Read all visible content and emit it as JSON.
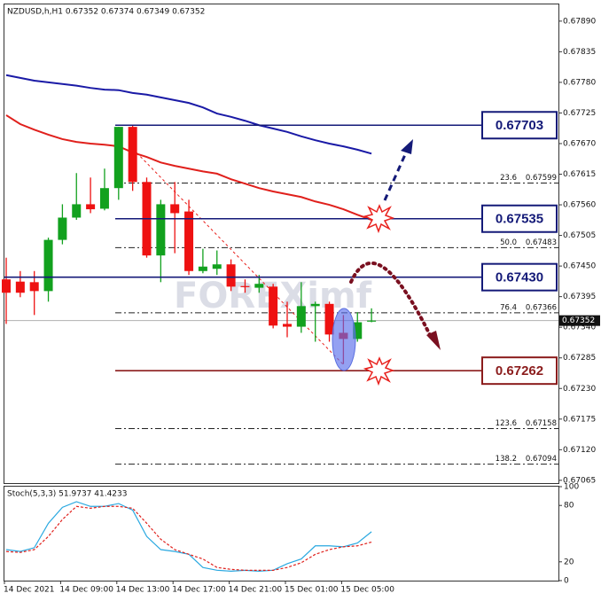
{
  "chart_data": [
    {
      "type": "candlestick",
      "title": "NZDUSD,h,H1  0.67352 0.67374 0.67349 0.67352",
      "watermark": "FOREXimf",
      "open": [
        0.67426,
        0.67422,
        0.67421,
        0.67405,
        0.67497,
        0.67537,
        0.67561,
        0.67553,
        0.6759,
        0.677,
        0.67601,
        0.67469,
        0.67561,
        0.67548,
        0.67441,
        0.67445,
        0.67453,
        0.67414,
        0.67411,
        0.67413,
        0.67346,
        0.67341,
        0.67378,
        0.67382,
        0.6733,
        0.67319,
        0.67352
      ],
      "high": [
        0.67465,
        0.67441,
        0.67441,
        0.67501,
        0.67561,
        0.67617,
        0.67609,
        0.67625,
        0.677,
        0.67703,
        0.67609,
        0.67569,
        0.67601,
        0.67569,
        0.67481,
        0.67478,
        0.67462,
        0.67426,
        0.67434,
        0.67418,
        0.67386,
        0.67421,
        0.67386,
        0.67386,
        0.67362,
        0.67367,
        0.67374
      ],
      "low": [
        0.67346,
        0.67394,
        0.67362,
        0.67386,
        0.67489,
        0.67533,
        0.67545,
        0.6755,
        0.67569,
        0.67585,
        0.67465,
        0.67421,
        0.67473,
        0.67434,
        0.67437,
        0.67434,
        0.67405,
        0.67402,
        0.67402,
        0.67338,
        0.67322,
        0.6733,
        0.67314,
        0.67314,
        0.67274,
        0.67314,
        0.67349
      ],
      "close": [
        0.67402,
        0.67402,
        0.67405,
        0.67497,
        0.67537,
        0.67561,
        0.67552,
        0.6759,
        0.677,
        0.67601,
        0.67469,
        0.67561,
        0.67545,
        0.67441,
        0.67449,
        0.67453,
        0.67413,
        0.67413,
        0.67418,
        0.67343,
        0.67341,
        0.67378,
        0.67382,
        0.67327,
        0.67319,
        0.67349,
        0.67352
      ],
      "up_color": "#12a11e",
      "down_color": "#ee1111",
      "series": [
        {
          "color": "#1a1aa6",
          "values": [
            0.67793,
            0.67788,
            0.67783,
            0.6778,
            0.67777,
            0.67774,
            0.6777,
            0.67767,
            0.67766,
            0.67761,
            0.67758,
            0.67753,
            0.67748,
            0.67743,
            0.67735,
            0.67724,
            0.67718,
            0.67711,
            0.67703,
            0.67697,
            0.67691,
            0.67683,
            0.67676,
            0.6767,
            0.67665,
            0.67659,
            0.67652
          ]
        },
        {
          "color": "#e0201c",
          "values": [
            0.67721,
            0.67705,
            0.67695,
            0.67686,
            0.67678,
            0.67673,
            0.6767,
            0.67668,
            0.67665,
            0.67654,
            0.67646,
            0.67636,
            0.6763,
            0.67625,
            0.6762,
            0.67616,
            0.67606,
            0.67598,
            0.6759,
            0.67584,
            0.67579,
            0.67574,
            0.67566,
            0.6756,
            0.67552,
            0.67542,
            0.67533
          ]
        }
      ],
      "levels": [
        {
          "value": 0.67703,
          "color": "#141a78"
        },
        {
          "value": 0.67535,
          "color": "#141a78"
        },
        {
          "value": 0.6743,
          "label": "0.67430",
          "color": "#141a78"
        },
        {
          "value": 0.67262,
          "color": "#8b1c1c"
        }
      ],
      "fib": [
        {
          "label": "23.6",
          "value": 0.67599
        },
        {
          "label": "50.0",
          "value": 0.67483
        },
        {
          "label": "76.4",
          "value": 0.67366
        },
        {
          "label": "123.6",
          "value": 0.67158
        },
        {
          "label": "138.2",
          "value": 0.67094
        }
      ],
      "ylim": [
        0.6706,
        0.6792
      ],
      "yticks": [
        {
          "value": 0.6789,
          "label": "0.67890"
        },
        {
          "value": 0.67835,
          "label": "0.67835"
        },
        {
          "value": 0.6778,
          "label": "0.67780"
        },
        {
          "value": 0.67725,
          "label": "0.67725"
        },
        {
          "value": 0.6767,
          "label": "0.67670"
        },
        {
          "value": 0.67615,
          "label": "0.67615"
        },
        {
          "value": 0.6756,
          "label": "0.67560"
        },
        {
          "value": 0.67505,
          "label": "0.67505"
        },
        {
          "value": 0.6745,
          "label": "0.67450"
        },
        {
          "value": 0.67395,
          "label": "0.67395"
        },
        {
          "value": 0.6734,
          "label": "0.67340"
        },
        {
          "value": 0.67285,
          "label": "0.67285"
        },
        {
          "value": 0.6723,
          "label": "0.67230"
        },
        {
          "value": 0.67175,
          "label": "0.67175"
        },
        {
          "value": 0.6712,
          "label": "0.67120"
        },
        {
          "value": 0.67065,
          "label": "0.67065"
        }
      ]
    },
    {
      "type": "line",
      "title": "Stoch(5,3,3) 51.9737 41.4233",
      "categories": [
        "14 Dec 2021",
        null,
        null,
        null,
        "14 Dec 09:00",
        null,
        null,
        null,
        "14 Dec 13:00",
        null,
        null,
        null,
        "14 Dec 17:00",
        null,
        null,
        null,
        "14 Dec 21:00",
        null,
        null,
        null,
        "15 Dec 01:00",
        null,
        null,
        null,
        "15 Dec 05:00",
        null,
        null
      ],
      "series": [
        {
          "color": "#29a8e0",
          "style": "solid",
          "values": [
            33,
            31,
            35,
            61,
            78,
            84,
            79,
            79,
            82,
            75,
            47,
            33,
            31,
            28,
            14,
            11,
            10,
            11,
            10,
            11,
            18,
            23,
            37,
            37,
            36,
            40,
            52
          ]
        },
        {
          "color": "#e0201c",
          "style": "dashed",
          "values": [
            31,
            30,
            33,
            47,
            65,
            79,
            77,
            79,
            79,
            77,
            61,
            44,
            33,
            28,
            23,
            14,
            12,
            11,
            11,
            11,
            14,
            19,
            28,
            33,
            36,
            37,
            41
          ]
        }
      ],
      "ylim": [
        0,
        100
      ],
      "yticks": [
        0,
        20,
        80,
        100
      ]
    }
  ]
}
